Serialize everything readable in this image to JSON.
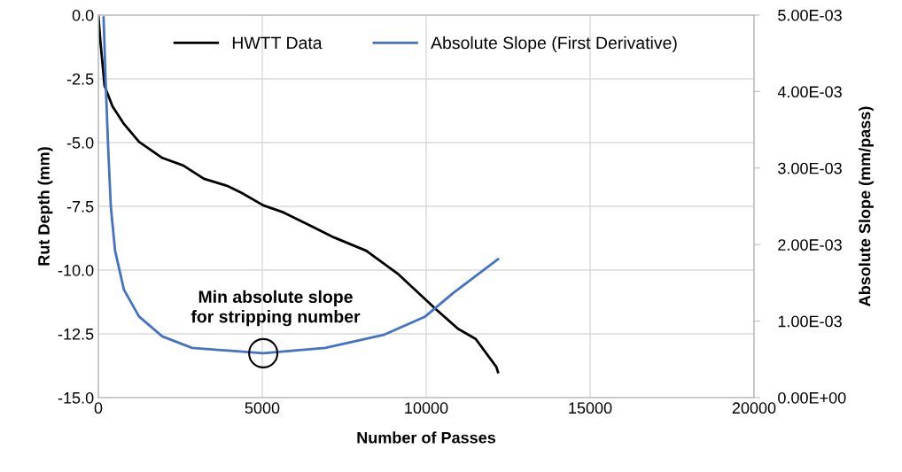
{
  "chart_data": {
    "type": "line",
    "xlabel": "Number of Passes",
    "ylabel": "Rut Depth (mm)",
    "y2label": "Absolute Slope (mm/pass)",
    "xlim": [
      0,
      20000
    ],
    "xticks": [
      0,
      5000,
      10000,
      15000,
      20000
    ],
    "ylim": [
      -15,
      0
    ],
    "yticks": [
      {
        "value": -15,
        "label": "-15.0"
      },
      {
        "value": -12.5,
        "label": "-12.5"
      },
      {
        "value": -10,
        "label": "-10.0"
      },
      {
        "value": -7.5,
        "label": "-7.5"
      },
      {
        "value": -5,
        "label": "-5.0"
      },
      {
        "value": -2.5,
        "label": "-2.5"
      },
      {
        "value": 0,
        "label": "0.0"
      }
    ],
    "y2lim": [
      0,
      0.005
    ],
    "y2ticks": [
      {
        "value": 0,
        "label": "0.00E+00"
      },
      {
        "value": 0.001,
        "label": "1.00E-03"
      },
      {
        "value": 0.002,
        "label": "2.00E-03"
      },
      {
        "value": 0.003,
        "label": "3.00E-03"
      },
      {
        "value": 0.004,
        "label": "4.00E-03"
      },
      {
        "value": 0.005,
        "label": "5.00E-03"
      }
    ],
    "grid": true,
    "legend": "top",
    "marker": "none",
    "line_style": "solid",
    "series": [
      {
        "name": "HWTT Data",
        "color": "#000000",
        "x": [
          0,
          60,
          190,
          430,
          780,
          1240,
          1950,
          2590,
          3220,
          3940,
          4380,
          5030,
          5650,
          6380,
          7190,
          8170,
          9160,
          10320,
          10970,
          11510,
          12140,
          12190
        ],
        "values": [
          0,
          -1.0,
          -2.78,
          -3.58,
          -4.27,
          -4.97,
          -5.6,
          -5.9,
          -6.42,
          -6.7,
          -6.98,
          -7.46,
          -7.74,
          -8.2,
          -8.72,
          -9.24,
          -10.17,
          -11.56,
          -12.3,
          -12.7,
          -13.8,
          -14.0
        ]
      },
      {
        "name": "Absolute Slope (First Derivative)",
        "color": "#4472c4",
        "axis": "y2",
        "x": [
          160,
          220,
          300,
          380,
          510,
          780,
          1240,
          1950,
          2860,
          5030,
          6920,
          8700,
          9970,
          10860,
          12190
        ],
        "values": [
          0.00497,
          0.00416,
          0.00326,
          0.0025,
          0.00192,
          0.00141,
          0.00106,
          0.0008,
          0.00065,
          0.00058,
          0.00065,
          0.00082,
          0.00106,
          0.00138,
          0.00181
        ]
      }
    ],
    "annotations": [
      "Min absolute slope\nfor stripping number"
    ]
  }
}
